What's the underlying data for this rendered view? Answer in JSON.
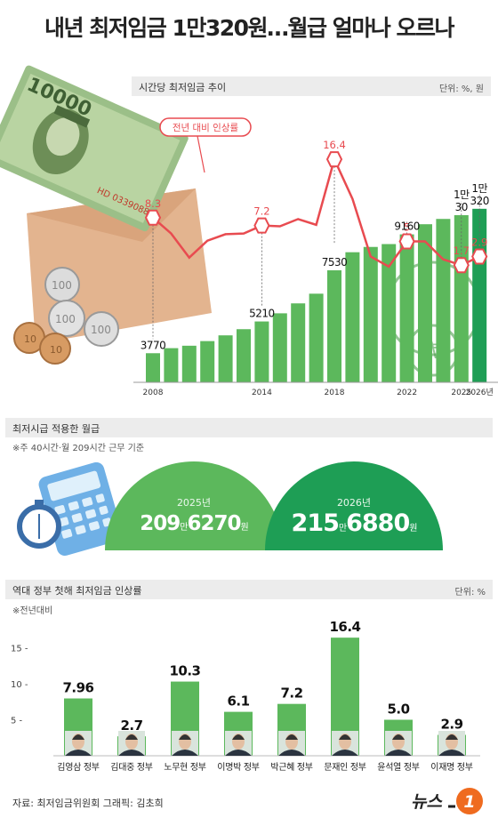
{
  "title": "내년 최저임금 1만320원…월급 얼마나 오르나",
  "section1": {
    "title": "시간당 최저임금 추이",
    "unit": "단위: %, 원",
    "callout": "전년 대비 인상률"
  },
  "section2": {
    "title": "최저시급 적용한 월급",
    "note": "※주 40시간·월 209시간 근무 기준",
    "y2025": {
      "label": "2025년",
      "big1": "209",
      "man": "만",
      "big2": "6270",
      "won": "원"
    },
    "y2026": {
      "label": "2026년",
      "big1": "215",
      "man": "만",
      "big2": "6880",
      "won": "원"
    }
  },
  "section3": {
    "title": "역대 정부 첫해 최저임금 인상률",
    "unit": "단위: %",
    "note": "※전년대비"
  },
  "source": "자료: 최저임금위원회   그래픽: 김초희",
  "logo": {
    "text": "뉴스",
    "num": "1"
  },
  "colors": {
    "green": "#5cb85c",
    "dark_green": "#1e9e55",
    "red": "#e84b50",
    "gray_bar": "#ececec"
  },
  "icons": [
    "banknote-icon",
    "coins-icon",
    "envelope-icon",
    "calculator-icon",
    "stopwatch-icon",
    "won-coin-icon"
  ],
  "chart_data": [
    {
      "type": "bar",
      "title": "시간당 최저임금 추이",
      "categories": [
        "2008",
        "2009",
        "2010",
        "2011",
        "2012",
        "2013",
        "2014",
        "2015",
        "2016",
        "2017",
        "2018",
        "2019",
        "2020",
        "2021",
        "2022",
        "2023",
        "2024",
        "2025",
        "2026년"
      ],
      "x_tick_labels": [
        "2008",
        "2014",
        "2018",
        "2022",
        "2025",
        "2026년"
      ],
      "series": [
        {
          "values": [
            3770,
            4000,
            4110,
            4320,
            4580,
            4860,
            5210,
            5580,
            6030,
            6470,
            7530,
            8350,
            8590,
            8720,
            9160,
            9620,
            9860,
            10030,
            10320
          ]
        },
        {
          "values": [
            8.3,
            6.1,
            2.75,
            5.1,
            6.0,
            6.1,
            7.2,
            7.1,
            8.1,
            7.3,
            16.4,
            10.9,
            2.9,
            1.5,
            5.0,
            5.0,
            2.5,
            1.7,
            2.9
          ]
        }
      ],
      "bar_labels": [
        {
          "i": 0,
          "text": "3770"
        },
        {
          "i": 6,
          "text": "5210"
        },
        {
          "i": 10,
          "text": "7530"
        },
        {
          "i": 14,
          "text": "9160"
        },
        {
          "i": 17,
          "text": "1만\n30"
        },
        {
          "i": 18,
          "text": "1만\n320"
        }
      ],
      "line_labels": [
        {
          "i": 0,
          "text": "8.3"
        },
        {
          "i": 6,
          "text": "7.2"
        },
        {
          "i": 10,
          "text": "16.4"
        },
        {
          "i": 14,
          "text": "5"
        },
        {
          "i": 17,
          "text": "1.7"
        },
        {
          "i": 18,
          "text": "2.9"
        }
      ]
    },
    {
      "type": "bar",
      "title": "역대 정부 첫해 최저임금 인상률",
      "categories": [
        "김영삼 정부",
        "김대중 정부",
        "노무현 정부",
        "이명박 정부",
        "박근혜 정부",
        "문재인 정부",
        "윤석열 정부",
        "이재명 정부"
      ],
      "values": [
        7.96,
        2.7,
        10.3,
        6.1,
        7.2,
        16.4,
        5.0,
        2.9
      ],
      "value_labels": [
        "7.96",
        "2.7",
        "10.3",
        "6.1",
        "7.2",
        "16.4",
        "5.0",
        "2.9"
      ],
      "ylim": [
        0,
        17
      ],
      "yticks": [
        {
          "v": 15,
          "t": "15 -"
        },
        {
          "v": 10,
          "t": "10 -"
        },
        {
          "v": 5,
          "t": "5 -"
        }
      ]
    }
  ]
}
